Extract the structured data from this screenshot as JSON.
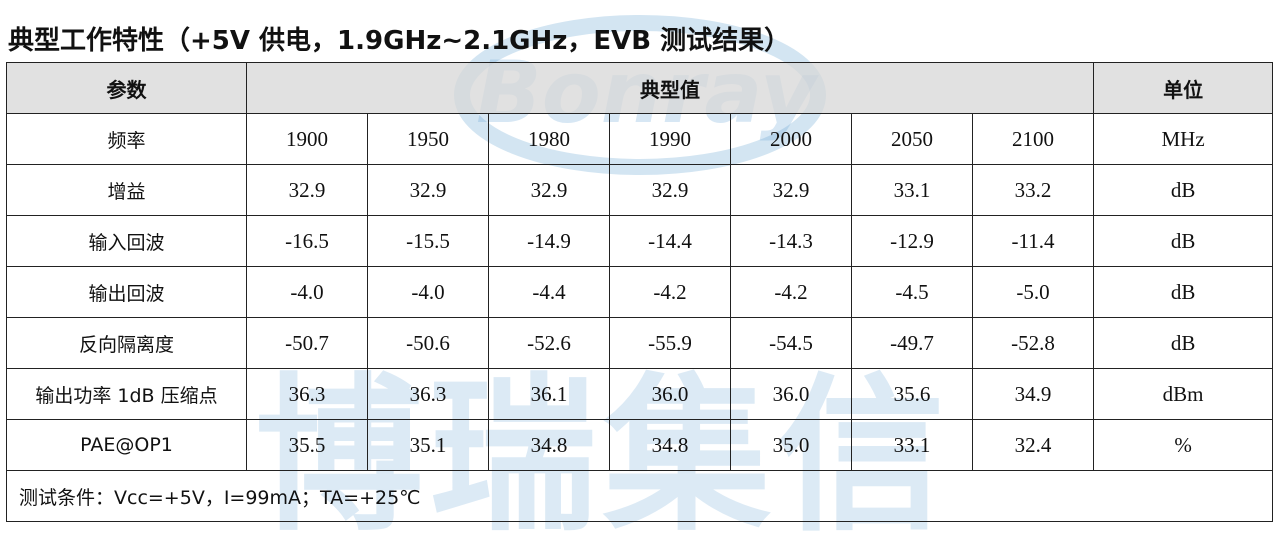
{
  "title": "典型工作特性（+5V 供电，1.9GHz~2.1GHz，EVB 测试结果）",
  "watermark": {
    "logo_text": "Bonray",
    "company_text": "博瑞集信",
    "color": "#60a0d2"
  },
  "table": {
    "headers": {
      "param": "参数",
      "typical": "典型值",
      "unit": "单位"
    },
    "header_bg": "#d7d7d7",
    "rows": [
      {
        "param": "频率",
        "values": [
          "1900",
          "1950",
          "1980",
          "1990",
          "2000",
          "2050",
          "2100"
        ],
        "unit": "MHz"
      },
      {
        "param": "增益",
        "values": [
          "32.9",
          "32.9",
          "32.9",
          "32.9",
          "32.9",
          "33.1",
          "33.2"
        ],
        "unit": "dB"
      },
      {
        "param": "输入回波",
        "values": [
          "-16.5",
          "-15.5",
          "-14.9",
          "-14.4",
          "-14.3",
          "-12.9",
          "-11.4"
        ],
        "unit": "dB"
      },
      {
        "param": "输出回波",
        "values": [
          "-4.0",
          "-4.0",
          "-4.4",
          "-4.2",
          "-4.2",
          "-4.5",
          "-5.0"
        ],
        "unit": "dB"
      },
      {
        "param": "反向隔离度",
        "values": [
          "-50.7",
          "-50.6",
          "-52.6",
          "-55.9",
          "-54.5",
          "-49.7",
          "-52.8"
        ],
        "unit": "dB"
      },
      {
        "param": "输出功率 1dB 压缩点",
        "values": [
          "36.3",
          "36.3",
          "36.1",
          "36.0",
          "36.0",
          "35.6",
          "34.9"
        ],
        "unit": "dBm"
      },
      {
        "param": "PAE@OP1",
        "values": [
          "35.5",
          "35.1",
          "34.8",
          "34.8",
          "35.0",
          "33.1",
          "32.4"
        ],
        "unit": "%"
      }
    ],
    "note": "测试条件：Vcc=+5V，I=99mA；TA=+25℃"
  }
}
